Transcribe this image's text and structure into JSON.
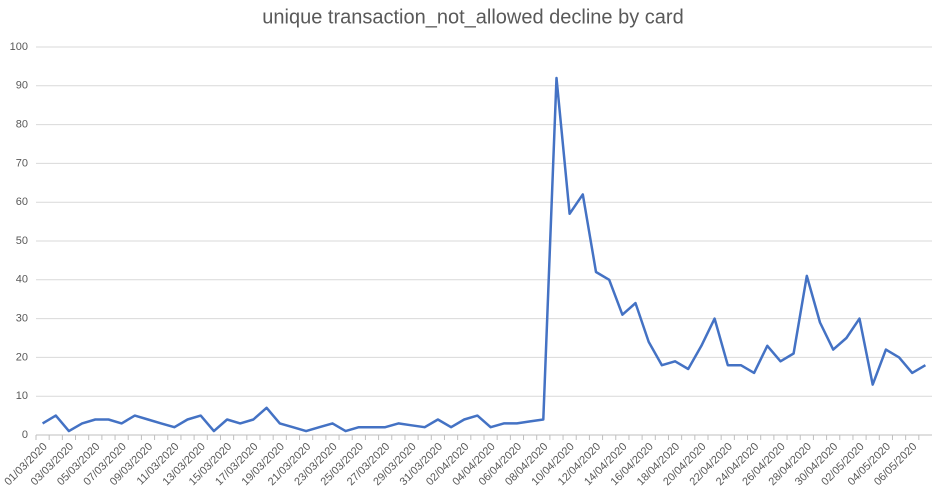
{
  "chart_data": {
    "type": "line",
    "title": "unique transaction_not_allowed decline by card",
    "categories": [
      "01/03/2020",
      null,
      "03/03/2020",
      null,
      "05/03/2020",
      null,
      "07/03/2020",
      null,
      "09/03/2020",
      null,
      "11/03/2020",
      null,
      "13/03/2020",
      null,
      "15/03/2020",
      null,
      "17/03/2020",
      null,
      "19/03/2020",
      null,
      "21/03/2020",
      null,
      "23/03/2020",
      null,
      "25/03/2020",
      null,
      "27/03/2020",
      null,
      "29/03/2020",
      null,
      "31/03/2020",
      null,
      "02/04/2020",
      null,
      "04/04/2020",
      null,
      "06/04/2020",
      null,
      "08/04/2020",
      null,
      "10/04/2020",
      null,
      "12/04/2020",
      null,
      "14/04/2020",
      null,
      "16/04/2020",
      null,
      "18/04/2020",
      null,
      "20/04/2020",
      null,
      "22/04/2020",
      null,
      "24/04/2020",
      null,
      "26/04/2020",
      null,
      "28/04/2020",
      null,
      "30/04/2020",
      null,
      "02/05/2020",
      null,
      "04/05/2020",
      null,
      "06/05/2020",
      null
    ],
    "values": [
      3,
      5,
      1,
      3,
      4,
      4,
      3,
      5,
      4,
      3,
      2,
      4,
      5,
      1,
      4,
      3,
      4,
      7,
      3,
      2,
      1,
      2,
      3,
      1,
      2,
      2,
      2,
      3,
      2.5,
      2,
      4,
      2,
      4,
      5,
      2,
      3,
      3,
      3.5,
      4,
      92,
      57,
      62,
      42,
      40,
      31,
      34,
      24,
      18,
      19,
      17,
      23,
      30,
      18,
      18,
      16,
      23,
      19,
      21,
      41,
      29,
      22,
      25,
      30,
      13,
      22,
      20,
      16,
      18
    ],
    "color": "#4472c4",
    "ylim": [
      0,
      100
    ],
    "yticks": [
      0,
      10,
      20,
      30,
      40,
      50,
      60,
      70,
      80,
      90,
      100
    ],
    "grid": true
  }
}
